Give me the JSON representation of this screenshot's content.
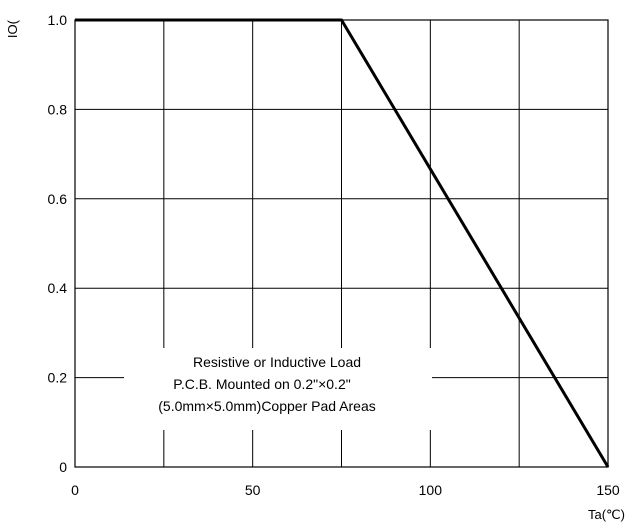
{
  "chart_data": {
    "type": "line",
    "xlabel": "Ta(℃)",
    "ylabel": "IO(",
    "xlim": [
      0,
      150
    ],
    "ylim": [
      0,
      1.0
    ],
    "x_ticks": [
      0,
      50,
      100,
      150
    ],
    "x_tick_labels": [
      "0",
      "50",
      "100",
      "150"
    ],
    "x_grid": [
      25,
      50,
      75,
      100,
      125,
      150
    ],
    "y_ticks": [
      0,
      0.2,
      0.4,
      0.6,
      0.8,
      1.0
    ],
    "y_tick_labels": [
      "0",
      "0.2",
      "0.4",
      "0.6",
      "0.8",
      "1.0"
    ],
    "grid": true,
    "series": [
      {
        "x": [
          0,
          75,
          150
        ],
        "y": [
          1.0,
          1.0,
          0
        ]
      }
    ],
    "annotation": [
      "Resistive or Inductive Load",
      "P.C.B. Mounted on 0.2\"×0.2\"",
      "(5.0mm×5.0mm)Copper Pad Areas"
    ],
    "colors": {
      "line": "#000000",
      "grid": "#000000"
    }
  }
}
